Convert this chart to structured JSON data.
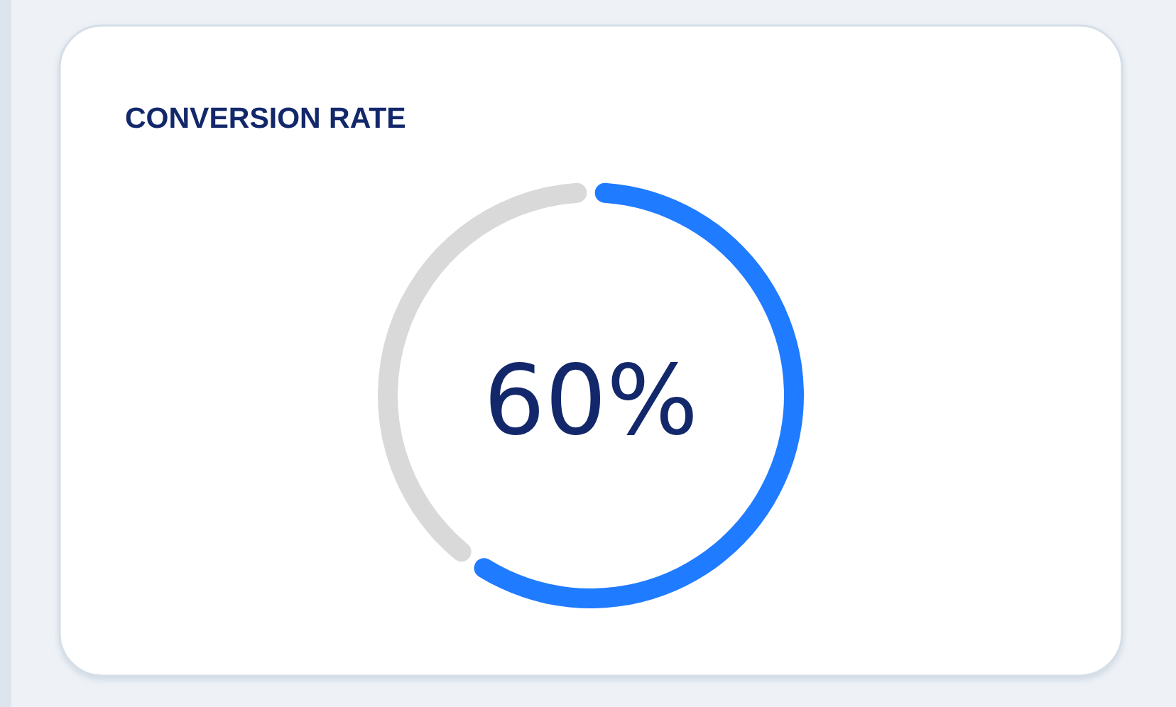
{
  "chart_data": {
    "type": "donut",
    "title": "CONVERSION RATE",
    "categories": [
      null,
      null
    ],
    "values": [
      60,
      40
    ],
    "colors": [
      "#1f7bff",
      "#d9d9d9"
    ],
    "value_labels": [
      "60%",
      null
    ]
  }
}
